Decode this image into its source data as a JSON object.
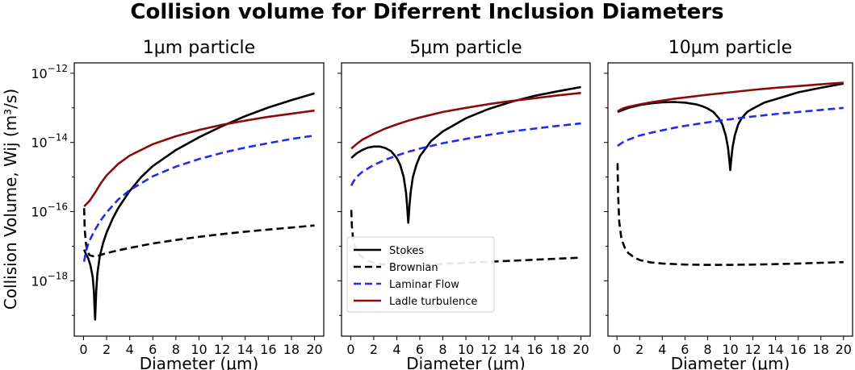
{
  "figure": {
    "title": "Collision volume for Diferrent Inclusion Diameters",
    "ylabel": "Collision Volume, Wij (m³/s)",
    "xlabel": "Diameter (μm)",
    "legend": {
      "placement": "lower-left of second panel",
      "entries": [
        {
          "key": "stokes",
          "label": "Stokes"
        },
        {
          "key": "brownian",
          "label": "Brownian"
        },
        {
          "key": "laminar",
          "label": "Laminar Flow"
        },
        {
          "key": "ladle",
          "label": "Ladle turbulence"
        }
      ]
    }
  },
  "styles": {
    "stokes": {
      "color": "#000000",
      "dash": "solid"
    },
    "brownian": {
      "color": "#000000",
      "dash": "dashed"
    },
    "laminar": {
      "color": "#1f2ee6",
      "dash": "dashed"
    },
    "ladle": {
      "color": "#8b0a0a",
      "dash": "solid"
    }
  },
  "chart_data": [
    {
      "type": "line",
      "title": "1μm particle",
      "xlabel": "Diameter (μm)",
      "ylabel": "Collision Volume, Wij (m³/s)",
      "yscale": "log",
      "xlim": [
        -0.8,
        20.8
      ],
      "ylim_exp": [
        -19.6,
        -11.7
      ],
      "xticks": [
        0,
        2,
        4,
        6,
        8,
        10,
        12,
        14,
        16,
        18,
        20
      ],
      "yticks_exp": [
        -18,
        -16,
        -14,
        -12
      ],
      "show_ytick_labels": true,
      "series": [
        {
          "key": "stokes",
          "name": "Stokes",
          "x": [
            0.05,
            0.2,
            0.4,
            0.6,
            0.8,
            0.9,
            0.95,
            1.0,
            1.05,
            1.1,
            1.2,
            1.4,
            1.7,
            2,
            2.5,
            3,
            4,
            5,
            6,
            8,
            10,
            12,
            14,
            16,
            18,
            20
          ],
          "log10_y": [
            -17.1,
            -17.22,
            -17.35,
            -17.55,
            -17.9,
            -18.3,
            -18.7,
            -19.12,
            -18.7,
            -18.3,
            -17.8,
            -17.3,
            -16.9,
            -16.6,
            -16.22,
            -15.9,
            -15.4,
            -15.0,
            -14.68,
            -14.22,
            -13.85,
            -13.53,
            -13.24,
            -12.99,
            -12.78,
            -12.58
          ]
        },
        {
          "key": "brownian",
          "name": "Brownian",
          "x": [
            0.05,
            0.1,
            0.2,
            0.3,
            0.5,
            0.7,
            1.0,
            1.5,
            2,
            3,
            4,
            6,
            8,
            10,
            12,
            14,
            16,
            18,
            20
          ],
          "log10_y": [
            -15.9,
            -16.5,
            -16.9,
            -17.1,
            -17.25,
            -17.28,
            -17.3,
            -17.25,
            -17.2,
            -17.12,
            -17.05,
            -16.92,
            -16.82,
            -16.73,
            -16.65,
            -16.58,
            -16.52,
            -16.46,
            -16.4
          ]
        },
        {
          "key": "laminar",
          "name": "Laminar Flow",
          "x": [
            0.05,
            0.2,
            0.5,
            1,
            1.5,
            2,
            3,
            4,
            6,
            8,
            10,
            12,
            14,
            16,
            18,
            20
          ],
          "log10_y": [
            -17.45,
            -17.15,
            -16.85,
            -16.52,
            -16.25,
            -16.02,
            -15.65,
            -15.38,
            -14.98,
            -14.7,
            -14.48,
            -14.3,
            -14.15,
            -14.02,
            -13.9,
            -13.8
          ]
        },
        {
          "key": "ladle",
          "name": "Ladle turbulence",
          "x": [
            0.05,
            0.2,
            0.5,
            1,
            1.5,
            2,
            3,
            4,
            6,
            8,
            10,
            12,
            14,
            16,
            18,
            20
          ],
          "log10_y": [
            -15.85,
            -15.8,
            -15.7,
            -15.45,
            -15.18,
            -14.95,
            -14.62,
            -14.38,
            -14.05,
            -13.82,
            -13.64,
            -13.49,
            -13.37,
            -13.26,
            -13.17,
            -13.08
          ]
        }
      ]
    },
    {
      "type": "line",
      "title": "5μm particle",
      "xlabel": "Diameter (μm)",
      "yscale": "log",
      "xlim": [
        -0.8,
        20.8
      ],
      "ylim_exp": [
        -19.6,
        -11.7
      ],
      "xticks": [
        0,
        2,
        4,
        6,
        8,
        10,
        12,
        14,
        16,
        18,
        20
      ],
      "yticks_exp": [
        -18,
        -16,
        -14,
        -12
      ],
      "show_ytick_labels": false,
      "series": [
        {
          "key": "stokes",
          "name": "Stokes",
          "x": [
            0.05,
            0.5,
            1,
            1.5,
            2,
            2.5,
            3,
            3.5,
            4,
            4.3,
            4.6,
            4.8,
            4.9,
            5.0,
            5.1,
            5.2,
            5.4,
            5.7,
            6,
            7,
            8,
            10,
            12,
            14,
            16,
            18,
            20
          ],
          "log10_y": [
            -14.45,
            -14.32,
            -14.22,
            -14.15,
            -14.12,
            -14.12,
            -14.16,
            -14.25,
            -14.45,
            -14.65,
            -15.0,
            -15.45,
            -15.85,
            -16.32,
            -15.85,
            -15.45,
            -15.0,
            -14.65,
            -14.4,
            -13.95,
            -13.68,
            -13.3,
            -13.03,
            -12.82,
            -12.65,
            -12.52,
            -12.4
          ]
        },
        {
          "key": "brownian",
          "name": "Brownian",
          "x": [
            0.05,
            0.1,
            0.2,
            0.4,
            0.7,
            1,
            1.5,
            2,
            3,
            4,
            5,
            6,
            8,
            10,
            12,
            14,
            16,
            18,
            20
          ],
          "log10_y": [
            -15.95,
            -16.4,
            -16.78,
            -17.05,
            -17.22,
            -17.32,
            -17.42,
            -17.48,
            -17.53,
            -17.55,
            -17.55,
            -17.54,
            -17.51,
            -17.48,
            -17.45,
            -17.42,
            -17.39,
            -17.36,
            -17.33
          ]
        },
        {
          "key": "laminar",
          "name": "Laminar Flow",
          "x": [
            0.05,
            0.2,
            0.5,
            1,
            2,
            3,
            4,
            5,
            6,
            8,
            10,
            12,
            14,
            16,
            18,
            20
          ],
          "log10_y": [
            -15.25,
            -15.15,
            -15.0,
            -14.85,
            -14.65,
            -14.5,
            -14.38,
            -14.27,
            -14.18,
            -14.02,
            -13.9,
            -13.78,
            -13.68,
            -13.6,
            -13.52,
            -13.45
          ]
        },
        {
          "key": "ladle",
          "name": "Ladle turbulence",
          "x": [
            0.05,
            0.5,
            1,
            2,
            3,
            4,
            5,
            6,
            8,
            10,
            12,
            14,
            16,
            18,
            20
          ],
          "log10_y": [
            -14.18,
            -14.05,
            -13.92,
            -13.75,
            -13.6,
            -13.48,
            -13.37,
            -13.28,
            -13.12,
            -13.0,
            -12.89,
            -12.8,
            -12.72,
            -12.64,
            -12.57
          ]
        }
      ]
    },
    {
      "type": "line",
      "title": "10μm particle",
      "xlabel": "Diameter (μm)",
      "yscale": "log",
      "xlim": [
        -0.8,
        20.8
      ],
      "ylim_exp": [
        -19.6,
        -11.7
      ],
      "xticks": [
        0,
        2,
        4,
        6,
        8,
        10,
        12,
        14,
        16,
        18,
        20
      ],
      "yticks_exp": [
        -18,
        -16,
        -14,
        -12
      ],
      "show_ytick_labels": false,
      "series": [
        {
          "key": "stokes",
          "name": "Stokes",
          "x": [
            0.05,
            1,
            2,
            3,
            4,
            5,
            6,
            7,
            7.5,
            8,
            8.5,
            9,
            9.3,
            9.6,
            9.8,
            9.9,
            10.0,
            10.1,
            10.2,
            10.4,
            10.7,
            11,
            11.5,
            12,
            13,
            14,
            16,
            18,
            20
          ],
          "log10_y": [
            -13.12,
            -13.0,
            -12.92,
            -12.87,
            -12.84,
            -12.83,
            -12.85,
            -12.9,
            -12.95,
            -13.02,
            -13.12,
            -13.3,
            -13.48,
            -13.8,
            -14.15,
            -14.45,
            -14.8,
            -14.45,
            -14.15,
            -13.8,
            -13.48,
            -13.3,
            -13.12,
            -13.02,
            -12.85,
            -12.75,
            -12.55,
            -12.42,
            -12.3
          ]
        },
        {
          "key": "brownian",
          "name": "Brownian",
          "x": [
            0.05,
            0.1,
            0.2,
            0.4,
            0.7,
            1,
            1.5,
            2,
            3,
            4,
            6,
            8,
            10,
            12,
            14,
            16,
            18,
            20
          ],
          "log10_y": [
            -14.6,
            -15.5,
            -16.3,
            -16.8,
            -17.05,
            -17.2,
            -17.32,
            -17.4,
            -17.47,
            -17.5,
            -17.53,
            -17.54,
            -17.54,
            -17.53,
            -17.52,
            -17.5,
            -17.48,
            -17.46
          ]
        },
        {
          "key": "laminar",
          "name": "Laminar Flow",
          "x": [
            0.05,
            0.5,
            1,
            2,
            3,
            4,
            5,
            6,
            8,
            10,
            12,
            14,
            16,
            18,
            20
          ],
          "log10_y": [
            -14.1,
            -14.0,
            -13.92,
            -13.8,
            -13.72,
            -13.65,
            -13.58,
            -13.52,
            -13.42,
            -13.33,
            -13.25,
            -13.18,
            -13.12,
            -13.06,
            -13.0
          ]
        },
        {
          "key": "ladle",
          "name": "Ladle turbulence",
          "x": [
            0.05,
            0.5,
            1,
            2,
            3,
            4,
            5,
            6,
            8,
            10,
            12,
            14,
            16,
            18,
            20
          ],
          "log10_y": [
            -13.1,
            -13.02,
            -12.97,
            -12.9,
            -12.84,
            -12.79,
            -12.74,
            -12.7,
            -12.62,
            -12.55,
            -12.48,
            -12.42,
            -12.37,
            -12.32,
            -12.27
          ]
        }
      ]
    }
  ]
}
